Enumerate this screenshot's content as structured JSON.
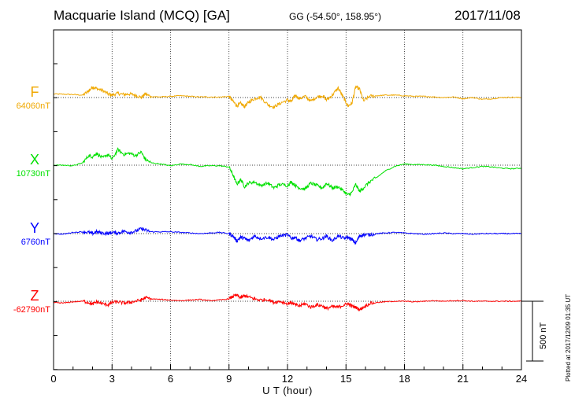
{
  "header": {
    "station": "Macquarie Island (MCQ)  [GA]",
    "coords": "GG (-54.50°, 158.95°)",
    "date": "2017/11/08"
  },
  "footer": {
    "xlabel": "U T (hour)",
    "scale": "500 nT",
    "plotted": "Plotted at 2017/12/09 01:35 UT"
  },
  "chart_data": {
    "type": "line",
    "title": "Macquarie Island (MCQ)  [GA]",
    "xlabel": "U T (hour)",
    "ylabel": "",
    "xlim": [
      0,
      24
    ],
    "xticks": [
      0,
      3,
      6,
      9,
      12,
      15,
      18,
      21,
      24
    ],
    "scale_bar_nT": 500,
    "grid": true,
    "series": [
      {
        "name": "F",
        "baseline_label": "64060nT",
        "color": "#f0a800",
        "x": [
          0,
          0.5,
          1,
          1.5,
          1.8,
          2,
          2.2,
          2.5,
          2.8,
          3,
          3.3,
          3.6,
          3.9,
          4.2,
          4.5,
          4.7,
          5,
          5.5,
          6,
          6.5,
          7,
          7.5,
          8,
          8.5,
          9,
          9.2,
          9.4,
          9.6,
          9.8,
          10,
          10.3,
          10.6,
          11,
          11.3,
          11.6,
          12,
          12.2,
          12.4,
          12.6,
          12.9,
          13.2,
          13.5,
          13.8,
          14,
          14.3,
          14.6,
          14.9,
          15.1,
          15.3,
          15.5,
          15.7,
          15.9,
          16.2,
          16.6,
          17,
          17.5,
          18,
          18.5,
          19,
          19.5,
          20,
          20.5,
          21,
          21.5,
          22,
          22.5,
          23,
          23.5,
          24
        ],
        "y": [
          30,
          28,
          25,
          20,
          55,
          90,
          75,
          60,
          30,
          20,
          35,
          25,
          30,
          20,
          0,
          30,
          8,
          5,
          10,
          15,
          10,
          5,
          5,
          3,
          10,
          -30,
          -70,
          -50,
          -75,
          -40,
          -10,
          5,
          -60,
          -80,
          -50,
          -20,
          -35,
          20,
          -10,
          10,
          -30,
          5,
          15,
          -20,
          20,
          80,
          -10,
          -70,
          -50,
          90,
          70,
          -30,
          10,
          15,
          20,
          20,
          15,
          10,
          10,
          5,
          0,
          5,
          -10,
          0,
          -15,
          -10,
          0,
          2,
          0
        ]
      },
      {
        "name": "X",
        "baseline_label": "10730nT",
        "color": "#00e000",
        "x": [
          0,
          0.5,
          1,
          1.5,
          1.8,
          2,
          2.2,
          2.5,
          2.8,
          3,
          3.3,
          3.6,
          3.9,
          4.2,
          4.5,
          4.7,
          5,
          5.5,
          6,
          6.5,
          7,
          7.5,
          8,
          8.5,
          9,
          9.2,
          9.4,
          9.6,
          9.8,
          10,
          10.3,
          10.6,
          11,
          11.3,
          11.6,
          12,
          12.2,
          12.4,
          12.6,
          12.9,
          13.2,
          13.5,
          13.8,
          14,
          14.3,
          14.6,
          14.9,
          15.1,
          15.3,
          15.5,
          15.7,
          15.9,
          16.2,
          16.6,
          17,
          17.5,
          18,
          18.5,
          19,
          19.5,
          20,
          20.5,
          21,
          21.5,
          22,
          22.5,
          23,
          23.5,
          24
        ],
        "y": [
          0,
          0,
          -5,
          20,
          80,
          70,
          100,
          60,
          90,
          50,
          130,
          90,
          100,
          80,
          110,
          50,
          20,
          10,
          -5,
          10,
          5,
          -10,
          -5,
          -5,
          -15,
          -80,
          -160,
          -120,
          -180,
          -150,
          -140,
          -170,
          -150,
          -190,
          -160,
          -170,
          -140,
          -170,
          -190,
          -200,
          -150,
          -170,
          -190,
          -150,
          -190,
          -180,
          -220,
          -250,
          -230,
          -160,
          -220,
          -190,
          -140,
          -100,
          -50,
          -10,
          10,
          5,
          5,
          0,
          -10,
          -20,
          -30,
          -20,
          -10,
          -15,
          -25,
          -30,
          -25
        ]
      },
      {
        "name": "Y",
        "baseline_label": "6760nT",
        "color": "#0000ff",
        "x": [
          0,
          0.5,
          1,
          1.5,
          1.8,
          2,
          2.2,
          2.5,
          2.8,
          3,
          3.3,
          3.6,
          3.9,
          4.2,
          4.5,
          4.7,
          5,
          5.5,
          6,
          6.5,
          7,
          7.5,
          8,
          8.5,
          9,
          9.2,
          9.4,
          9.6,
          9.8,
          10,
          10.3,
          10.6,
          11,
          11.3,
          11.6,
          12,
          12.2,
          12.4,
          12.6,
          12.9,
          13.2,
          13.5,
          13.8,
          14,
          14.3,
          14.6,
          14.9,
          15.1,
          15.3,
          15.5,
          15.7,
          15.9,
          16.2,
          16.6,
          17,
          17.5,
          18,
          18.5,
          19,
          19.5,
          20,
          20.5,
          21,
          21.5,
          22,
          22.5,
          23,
          23.5,
          24
        ],
        "y": [
          0,
          -5,
          10,
          15,
          10,
          0,
          15,
          5,
          0,
          10,
          5,
          20,
          10,
          20,
          40,
          30,
          15,
          15,
          15,
          10,
          5,
          0,
          5,
          10,
          0,
          -20,
          -60,
          -30,
          -40,
          -60,
          -20,
          -40,
          -30,
          -50,
          -20,
          -10,
          -40,
          -30,
          -60,
          -40,
          -20,
          -50,
          -40,
          -20,
          -60,
          -20,
          -40,
          -30,
          -50,
          -80,
          -20,
          -10,
          -10,
          0,
          5,
          10,
          5,
          0,
          -5,
          0,
          5,
          0,
          0,
          -5,
          0,
          0,
          0,
          0,
          0
        ]
      },
      {
        "name": "Z",
        "baseline_label": "-62790nT",
        "color": "#ff0000",
        "x": [
          0,
          0.5,
          1,
          1.5,
          1.8,
          2,
          2.2,
          2.5,
          2.8,
          3,
          3.3,
          3.6,
          3.9,
          4.2,
          4.5,
          4.7,
          5,
          5.5,
          6,
          6.5,
          7,
          7.5,
          8,
          8.5,
          9,
          9.2,
          9.4,
          9.6,
          9.8,
          10,
          10.3,
          10.6,
          11,
          11.3,
          11.6,
          12,
          12.2,
          12.4,
          12.6,
          12.9,
          13.2,
          13.5,
          13.8,
          14,
          14.3,
          14.6,
          14.9,
          15.1,
          15.3,
          15.5,
          15.7,
          15.9,
          16.2,
          16.6,
          17,
          17.5,
          18,
          18.5,
          19,
          19.5,
          20,
          20.5,
          21,
          21.5,
          22,
          22.5,
          23,
          23.5,
          24
        ],
        "y": [
          -10,
          -15,
          -5,
          0,
          -10,
          -25,
          -5,
          -20,
          -30,
          -10,
          -5,
          -15,
          -10,
          0,
          10,
          30,
          20,
          15,
          10,
          5,
          10,
          15,
          5,
          10,
          20,
          40,
          50,
          30,
          45,
          35,
          20,
          10,
          15,
          -10,
          0,
          -20,
          -10,
          -30,
          -40,
          -20,
          -50,
          -30,
          -40,
          -60,
          -45,
          -50,
          -30,
          -20,
          -40,
          -50,
          -70,
          -50,
          -20,
          -10,
          -5,
          0,
          0,
          -5,
          0,
          5,
          0,
          5,
          5,
          0,
          0,
          0,
          0,
          0,
          0
        ]
      }
    ]
  }
}
